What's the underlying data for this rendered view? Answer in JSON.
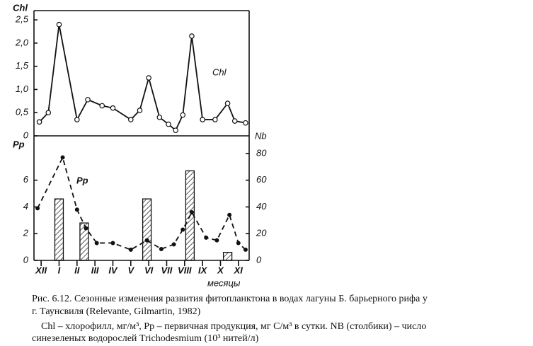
{
  "chart_data": [
    {
      "type": "line",
      "ylabel": "Chl",
      "ylim": [
        0,
        2.7
      ],
      "yticks": [
        0,
        {
          "value": 0.5,
          "label": "0,5"
        },
        {
          "value": 1.0,
          "label": "1,0"
        },
        {
          "value": 1.5,
          "label": "1,5"
        },
        {
          "value": 2.0,
          "label": "2,0"
        },
        {
          "value": 2.5,
          "label": "2,5"
        }
      ],
      "xlim": [
        -0.4,
        11.6
      ],
      "series": [
        {
          "name": "Chl",
          "color": "#111111",
          "x": [
            -0.1,
            0.4,
            1.0,
            2.0,
            2.6,
            3.4,
            4.0,
            5.0,
            5.5,
            6.0,
            6.6,
            7.1,
            7.5,
            7.9,
            8.4,
            9.0,
            9.7,
            10.4,
            10.8,
            11.4
          ],
          "values": [
            0.3,
            0.5,
            2.4,
            0.35,
            0.78,
            0.65,
            0.6,
            0.35,
            0.55,
            1.25,
            0.4,
            0.25,
            0.12,
            0.45,
            2.15,
            0.35,
            0.35,
            0.7,
            0.32,
            0.28
          ]
        }
      ]
    },
    {
      "type": "combo",
      "xlabel": "месяцы",
      "ylim": [
        0,
        9
      ],
      "yticks": [
        0,
        2,
        4,
        6
      ],
      "y2lim": [
        0,
        90
      ],
      "y2ticks": [
        0,
        20,
        40,
        60,
        80
      ],
      "xlim": [
        -0.4,
        11.6
      ],
      "xticks": [
        {
          "value": 0,
          "label": "XII"
        },
        {
          "value": 1,
          "label": "I"
        },
        {
          "value": 2,
          "label": "II"
        },
        {
          "value": 3,
          "label": "III"
        },
        {
          "value": 4,
          "label": "IV"
        },
        {
          "value": 5,
          "label": "V"
        },
        {
          "value": 6,
          "label": "VI"
        },
        {
          "value": 7,
          "label": "VII"
        },
        {
          "value": 8,
          "label": "VIII"
        },
        {
          "value": 9,
          "label": "IX"
        },
        {
          "value": 10,
          "label": "X"
        },
        {
          "value": 11,
          "label": "XI"
        }
      ],
      "series": [
        {
          "name": "Pp",
          "color": "#111111",
          "x": [
            -0.2,
            1.2,
            2.0,
            2.5,
            3.1,
            4.0,
            5.0,
            5.9,
            6.7,
            7.4,
            7.9,
            8.4,
            9.2,
            9.8,
            10.5,
            11.0,
            11.4
          ],
          "values": [
            3.9,
            7.7,
            3.8,
            2.4,
            1.3,
            1.3,
            0.8,
            1.5,
            0.85,
            1.2,
            2.3,
            3.6,
            1.7,
            1.5,
            3.4,
            1.3,
            0.8
          ]
        },
        {
          "name": "Nb",
          "color": "#111111",
          "axis": "y2",
          "x": [
            1.0,
            2.4,
            5.9,
            8.3,
            10.4
          ],
          "values": [
            46,
            28,
            46,
            67,
            6
          ]
        }
      ]
    }
  ],
  "caption": [
    "Рис. 6.12. Сезонные изменения развития фитопланктона в водах лагуны Б. барьерного рифа у",
    "г. Таунсвиля (Relevante, Gilmartin, 1982)",
    "Chl – хлорофилл, мг/м³, Pp – первичная продукция, мг С/м³ в сутки. NB (столбики) – число",
    "синезеленых водорослей Trichodesmium (10³ нитей/л)"
  ]
}
